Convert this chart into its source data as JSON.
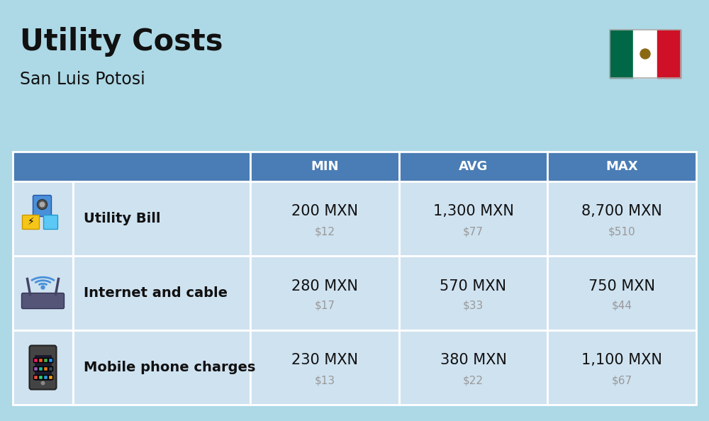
{
  "title": "Utility Costs",
  "subtitle": "San Luis Potosi",
  "background_color": "#add8e6",
  "header_color": "#4a7db5",
  "header_text_color": "#ffffff",
  "row_color_1": "#cfe2f0",
  "row_color_2": "#cfe2f0",
  "cell_text_color": "#111111",
  "usd_text_color": "#999999",
  "col_headers": [
    "MIN",
    "AVG",
    "MAX"
  ],
  "rows": [
    {
      "label": "Utility Bill",
      "min_mxn": "200 MXN",
      "min_usd": "$12",
      "avg_mxn": "1,300 MXN",
      "avg_usd": "$77",
      "max_mxn": "8,700 MXN",
      "max_usd": "$510"
    },
    {
      "label": "Internet and cable",
      "min_mxn": "280 MXN",
      "min_usd": "$17",
      "avg_mxn": "570 MXN",
      "avg_usd": "$33",
      "max_mxn": "750 MXN",
      "max_usd": "$44"
    },
    {
      "label": "Mobile phone charges",
      "min_mxn": "230 MXN",
      "min_usd": "$13",
      "avg_mxn": "380 MXN",
      "avg_usd": "$22",
      "max_mxn": "1,100 MXN",
      "max_usd": "$67"
    }
  ],
  "title_fontsize": 30,
  "subtitle_fontsize": 17,
  "header_fontsize": 13,
  "cell_mxn_fontsize": 15,
  "cell_usd_fontsize": 11,
  "label_fontsize": 14,
  "flag_green": "#006847",
  "flag_white": "#FFFFFF",
  "flag_red": "#CE1126"
}
